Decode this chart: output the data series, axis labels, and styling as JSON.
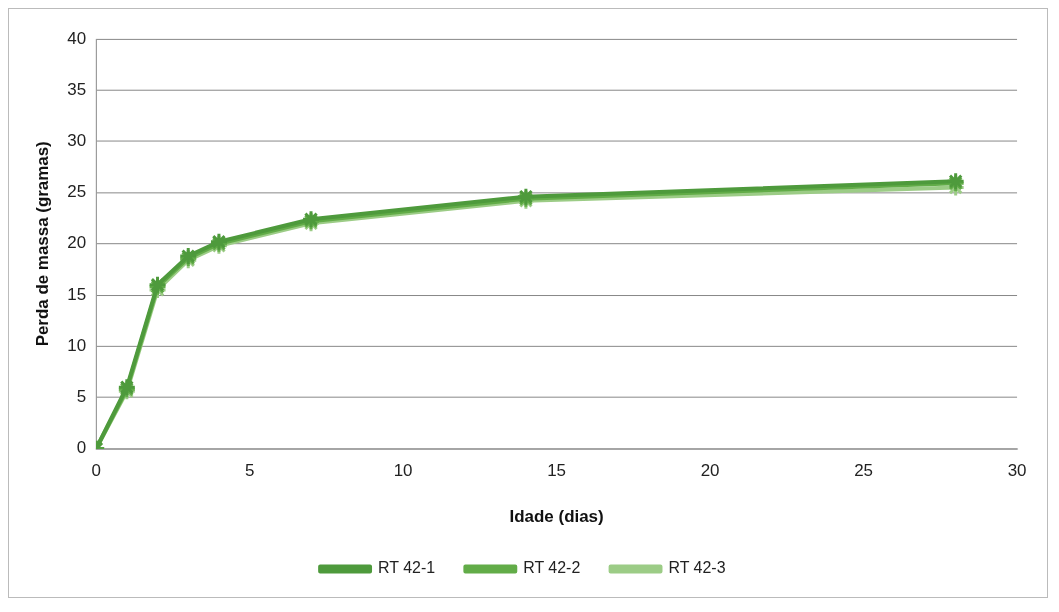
{
  "chart_data": {
    "type": "line",
    "xlabel": "Idade (dias)",
    "ylabel": "Perda de massa (gramas)",
    "x": [
      0,
      1,
      2,
      3,
      4,
      7,
      14,
      28
    ],
    "series": [
      {
        "name": "RT 42-1",
        "color": "#4e9a3c",
        "values": [
          0,
          6,
          16,
          18.8,
          20.2,
          22.4,
          24.6,
          26.1
        ]
      },
      {
        "name": "RT 42-2",
        "color": "#62ac48",
        "values": [
          0,
          5.8,
          15.8,
          18.6,
          20,
          22.2,
          24.4,
          25.9
        ]
      },
      {
        "name": "RT 42-3",
        "color": "#9ccc86",
        "values": [
          0,
          5.6,
          15.5,
          18.4,
          19.8,
          22,
          24.2,
          25.5
        ]
      }
    ],
    "xlim": [
      0,
      30
    ],
    "xticks": [
      0,
      5,
      10,
      15,
      20,
      25,
      30
    ],
    "ylim": [
      0,
      40
    ],
    "yticks": [
      0,
      5,
      10,
      15,
      20,
      25,
      30,
      35,
      40
    ],
    "grid": "y",
    "legend": "bottom",
    "marker": "cross",
    "line_style": "solid"
  }
}
